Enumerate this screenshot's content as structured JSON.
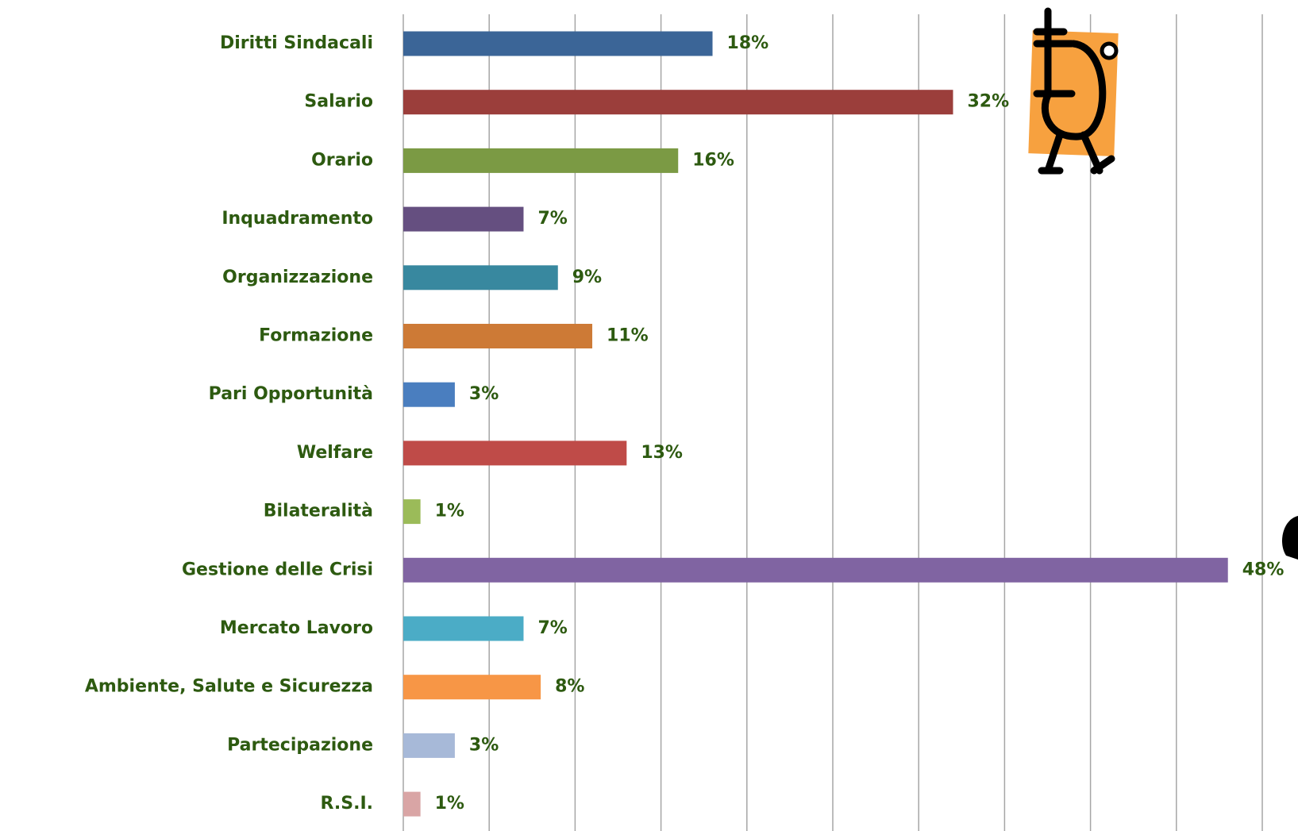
{
  "chart_data": {
    "type": "bar",
    "orientation": "horizontal",
    "categories": [
      "Diritti Sindacali",
      "Salario",
      "Orario",
      "Inquadramento",
      "Organizzazione",
      "Formazione",
      "Pari Opportunità",
      "Welfare",
      "Bilateralità",
      "Gestione delle Crisi",
      "Mercato Lavoro",
      "Ambiente, Salute e Sicurezza",
      "Partecipazione",
      "R.S.I."
    ],
    "values": [
      18,
      32,
      16,
      7,
      9,
      11,
      3,
      13,
      1,
      48,
      7,
      8,
      3,
      1
    ],
    "value_labels": [
      "18%",
      "32%",
      "16%",
      "7%",
      "9%",
      "11%",
      "3%",
      "13%",
      "1%",
      "48%",
      "7%",
      "8%",
      "3%",
      "1%"
    ],
    "colors": [
      "#3b6597",
      "#9b3e3b",
      "#7b9a44",
      "#654f80",
      "#38889f",
      "#cd7a36",
      "#4a7ebf",
      "#bf4b48",
      "#9bbb59",
      "#8064a2",
      "#4bacc6",
      "#f79646",
      "#a7b9d8",
      "#d9a5a5"
    ],
    "xlim": [
      0,
      50
    ],
    "xticks": [
      0,
      5,
      10,
      15,
      20,
      25,
      30,
      35,
      40,
      45,
      50
    ],
    "grid": true
  }
}
